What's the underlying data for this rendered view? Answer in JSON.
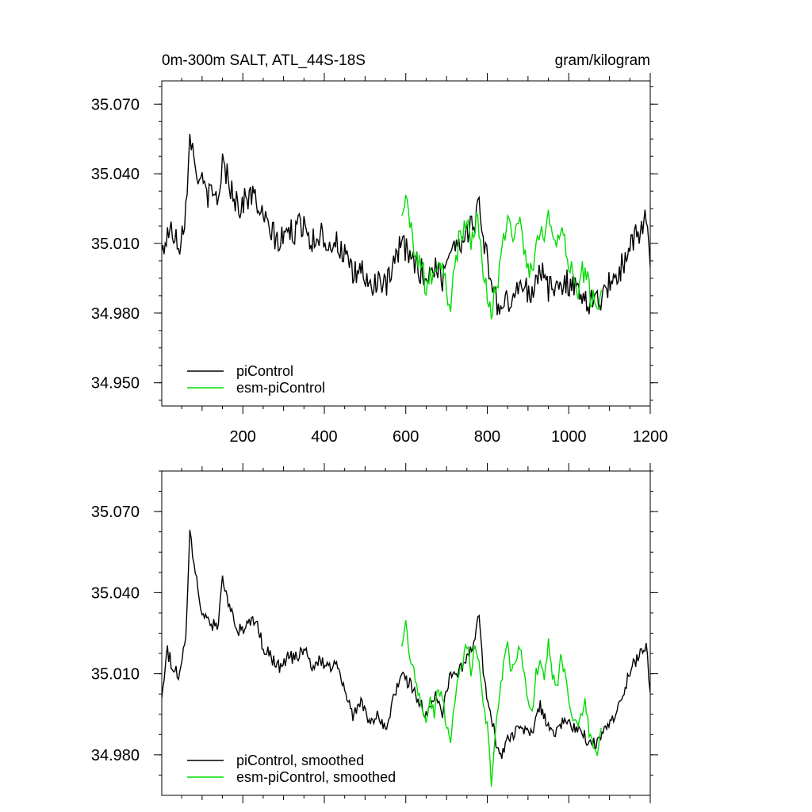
{
  "header": {
    "title": "0m-300m SALT, ATL_44S-18S",
    "units": "gram/kilogram"
  },
  "chart_data": [
    {
      "type": "line",
      "x_range": [
        1,
        1200
      ],
      "ylim": [
        34.94,
        35.08
      ],
      "yticks": [
        34.95,
        34.98,
        35.01,
        35.04,
        35.07
      ],
      "ytick_labels": [
        "34.950",
        "34.980",
        "35.010",
        "35.040",
        "35.070"
      ],
      "xticks": [
        200,
        400,
        600,
        800,
        1000,
        1200
      ],
      "xtick_labels": [
        "200",
        "400",
        "600",
        "800",
        "1000",
        "1200"
      ],
      "legend_position": "bottom-left",
      "series": [
        {
          "name": "piControl",
          "color": "#000000",
          "x": [
            1,
            15,
            30,
            45,
            60,
            70,
            80,
            90,
            100,
            120,
            140,
            150,
            170,
            190,
            210,
            230,
            250,
            270,
            290,
            310,
            330,
            350,
            370,
            390,
            410,
            430,
            450,
            470,
            490,
            510,
            530,
            550,
            570,
            590,
            610,
            630,
            650,
            670,
            690,
            710,
            730,
            750,
            770,
            780,
            790,
            810,
            830,
            850,
            870,
            890,
            910,
            930,
            950,
            970,
            990,
            1010,
            1030,
            1050,
            1070,
            1090,
            1110,
            1130,
            1150,
            1170,
            1190,
            1200
          ],
          "y": [
            35.005,
            35.015,
            35.015,
            35.01,
            35.025,
            35.06,
            35.045,
            35.04,
            35.035,
            35.03,
            35.03,
            35.045,
            35.035,
            35.025,
            35.03,
            35.03,
            35.02,
            35.015,
            35.01,
            35.015,
            35.015,
            35.02,
            35.01,
            35.015,
            35.01,
            35.01,
            35.005,
            34.995,
            35.0,
            34.99,
            34.995,
            34.99,
            35.0,
            35.01,
            35.005,
            35.0,
            34.995,
            35.0,
            34.995,
            35.01,
            35.01,
            35.015,
            35.02,
            35.03,
            35.01,
            34.995,
            34.98,
            34.985,
            34.99,
            34.99,
            34.99,
            35.0,
            34.99,
            34.99,
            34.995,
            34.99,
            34.99,
            34.985,
            34.985,
            34.99,
            34.995,
            35.0,
            35.01,
            35.015,
            35.02,
            35.0
          ]
        },
        {
          "name": "esm-piControl",
          "color": "#00dd00",
          "x": [
            590,
            600,
            610,
            620,
            630,
            640,
            650,
            660,
            670,
            680,
            690,
            700,
            710,
            720,
            730,
            740,
            750,
            760,
            770,
            780,
            790,
            800,
            810,
            820,
            830,
            840,
            850,
            860,
            870,
            880,
            890,
            900,
            910,
            920,
            930,
            940,
            950,
            960,
            970,
            980,
            990,
            1000,
            1010,
            1020,
            1030,
            1040,
            1050,
            1060,
            1070,
            1080
          ],
          "y": [
            35.02,
            35.03,
            35.015,
            35.01,
            35.005,
            35.0,
            34.99,
            35.0,
            34.995,
            35.005,
            35.0,
            34.99,
            34.985,
            35.0,
            35.01,
            35.015,
            35.02,
            35.01,
            35.02,
            35.015,
            35.0,
            34.99,
            34.98,
            34.99,
            35.0,
            35.015,
            35.02,
            35.01,
            35.015,
            35.02,
            35.01,
            35.0,
            34.995,
            35.01,
            35.015,
            35.01,
            35.02,
            35.01,
            35.005,
            35.015,
            35.01,
            35.0,
            34.995,
            34.99,
            34.995,
            35.0,
            34.99,
            34.985,
            34.98,
            34.99
          ]
        }
      ]
    },
    {
      "type": "line",
      "x_range": [
        1,
        1200
      ],
      "ylim": [
        34.965,
        35.085
      ],
      "yticks": [
        34.98,
        35.01,
        35.04,
        35.07
      ],
      "ytick_labels": [
        "34.980",
        "35.010",
        "35.040",
        "35.070"
      ],
      "legend_position": "bottom-left",
      "series": [
        {
          "name": "piControl, smoothed",
          "color": "#000000",
          "x": [
            1,
            15,
            30,
            45,
            60,
            70,
            80,
            90,
            100,
            120,
            140,
            150,
            170,
            190,
            210,
            230,
            250,
            270,
            290,
            310,
            330,
            350,
            370,
            390,
            410,
            430,
            450,
            470,
            490,
            510,
            530,
            550,
            570,
            590,
            610,
            630,
            650,
            670,
            690,
            710,
            730,
            750,
            770,
            780,
            790,
            810,
            830,
            850,
            870,
            890,
            910,
            930,
            950,
            970,
            990,
            1010,
            1030,
            1050,
            1070,
            1090,
            1110,
            1130,
            1150,
            1170,
            1190,
            1200
          ],
          "y": [
            35.003,
            35.018,
            35.012,
            35.01,
            35.025,
            35.062,
            35.052,
            35.04,
            35.033,
            35.028,
            35.028,
            35.044,
            35.033,
            35.026,
            35.028,
            35.03,
            35.02,
            35.016,
            35.012,
            35.016,
            35.016,
            35.02,
            35.011,
            35.015,
            35.012,
            35.013,
            35.006,
            34.993,
            35.001,
            34.991,
            34.996,
            34.99,
            35.0,
            35.01,
            35.006,
            35.001,
            34.995,
            35.002,
            34.996,
            35.01,
            35.011,
            35.016,
            35.022,
            35.034,
            35.01,
            34.994,
            34.978,
            34.985,
            34.988,
            34.99,
            34.988,
            34.998,
            34.99,
            34.989,
            34.994,
            34.99,
            34.989,
            34.984,
            34.984,
            34.99,
            34.994,
            35.001,
            35.011,
            35.016,
            35.02,
            35.003
          ]
        },
        {
          "name": "esm-piControl, smoothed",
          "color": "#00dd00",
          "x": [
            590,
            600,
            610,
            620,
            630,
            640,
            650,
            660,
            670,
            680,
            690,
            700,
            710,
            720,
            730,
            740,
            750,
            760,
            770,
            780,
            790,
            800,
            810,
            820,
            830,
            840,
            850,
            860,
            870,
            880,
            890,
            900,
            910,
            920,
            930,
            940,
            950,
            960,
            970,
            980,
            990,
            1000,
            1010,
            1020,
            1030,
            1040,
            1050,
            1060,
            1070,
            1080
          ],
          "y": [
            35.022,
            35.029,
            35.016,
            35.01,
            35.004,
            34.999,
            34.99,
            35.001,
            34.994,
            35.006,
            35.0,
            34.991,
            34.986,
            35.001,
            35.01,
            35.014,
            35.021,
            35.011,
            35.019,
            35.015,
            35.0,
            34.99,
            34.97,
            34.99,
            35.0,
            35.015,
            35.02,
            35.01,
            35.015,
            35.021,
            35.01,
            35.0,
            34.995,
            35.01,
            35.015,
            35.01,
            35.021,
            35.01,
            35.004,
            35.015,
            35.01,
            35.0,
            34.995,
            34.99,
            34.995,
            35.0,
            34.988,
            34.984,
            34.978,
            34.99
          ]
        }
      ]
    }
  ]
}
